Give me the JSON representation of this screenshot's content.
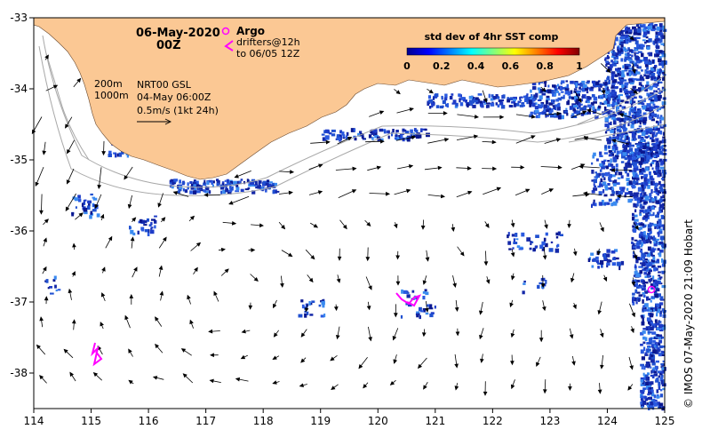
{
  "title": {
    "date": "06-May-2020",
    "hour": "00Z"
  },
  "legend": {
    "argo_label": "Argo",
    "drifters_line1": "drifters@12h",
    "drifters_line2": "to 06/05 12Z",
    "argo_color": "#ff00ff",
    "drifter_color": "#ff00ff"
  },
  "colorbar": {
    "title": "std dev of 4hr SST comp",
    "ticks": [
      "0",
      "0.2",
      "0.4",
      "0.6",
      "0.8",
      "1"
    ]
  },
  "info": {
    "contour_200": "200m",
    "contour_1000": "1000m",
    "product": "NRT00 GSL",
    "product_time": "04-May 06:00Z",
    "scale": "0.5m/s (1kt 24h)"
  },
  "axes": {
    "x_ticks": [
      "114",
      "115",
      "116",
      "117",
      "118",
      "119",
      "120",
      "121",
      "122",
      "123",
      "124",
      "125"
    ],
    "y_ticks": [
      "-33",
      "-34",
      "-35",
      "-36",
      "-37",
      "-38"
    ],
    "x_range": [
      114,
      125
    ],
    "y_range": [
      -38.5,
      -33
    ]
  },
  "credit": "©  IMOS 07-May-2020 21:09 Hobart",
  "colors": {
    "land": "#fbc894",
    "ocean": "#ffffff",
    "data_dark": "#1e3cc8",
    "data_mid": "#3a8af0",
    "contour": "#a8a8a8"
  }
}
